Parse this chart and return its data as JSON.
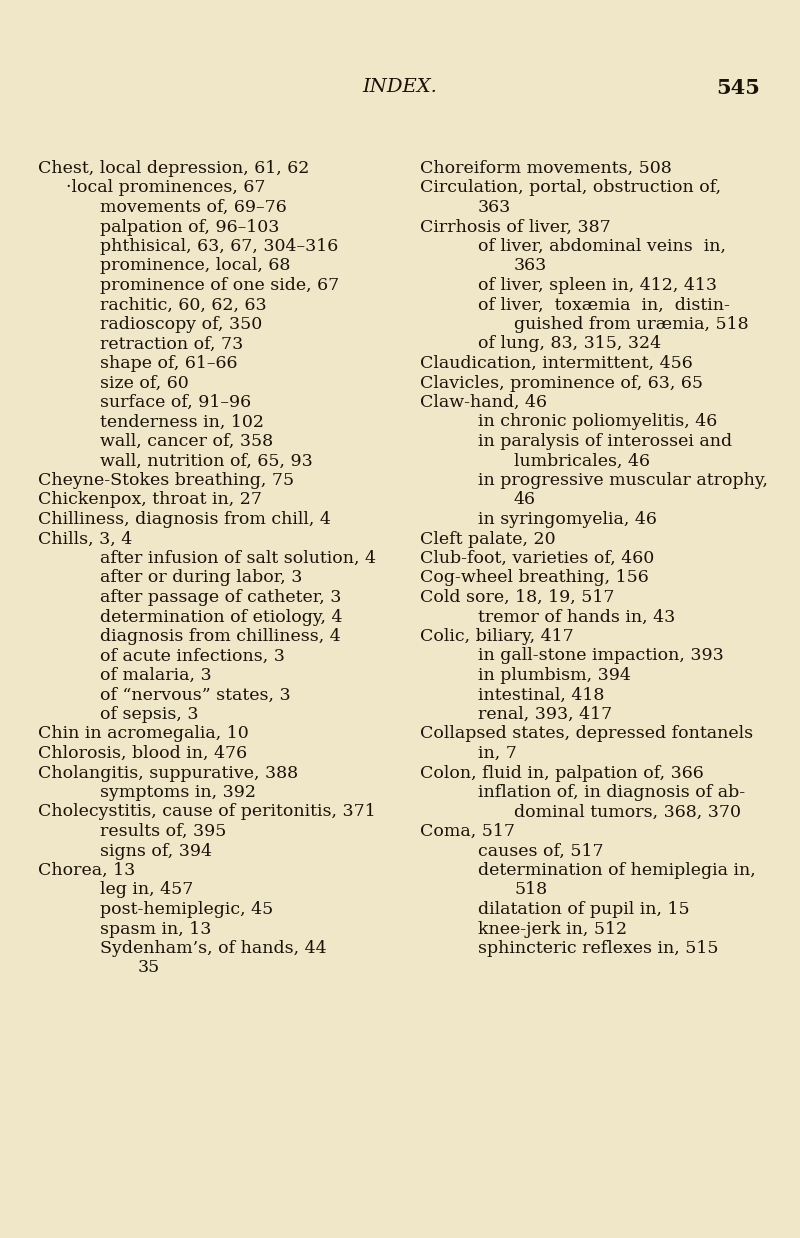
{
  "background_color": "#f0e6c8",
  "title": "INDEX.",
  "page_number": "545",
  "title_fontsize": 14,
  "body_fontsize": 12.5,
  "left_column": [
    {
      "text": "Chest, local depression, 61, 62",
      "indent": 0
    },
    {
      "text": "·local prominences, 67",
      "indent": 1
    },
    {
      "text": "movements of, 69–76",
      "indent": 1
    },
    {
      "text": "palpation of, 96–103",
      "indent": 1
    },
    {
      "text": "phthisical, 63, 67, 304–316",
      "indent": 1
    },
    {
      "text": "prominence, local, 68",
      "indent": 1
    },
    {
      "text": "prominence of one side, 67",
      "indent": 1
    },
    {
      "text": "rachitic, 60, 62, 63",
      "indent": 1
    },
    {
      "text": "radioscopy of, 350",
      "indent": 1
    },
    {
      "text": "retraction of, 73",
      "indent": 1
    },
    {
      "text": "shape of, 61–66",
      "indent": 1
    },
    {
      "text": "size of, 60",
      "indent": 1
    },
    {
      "text": "surface of, 91–96",
      "indent": 1
    },
    {
      "text": "tenderness in, 102",
      "indent": 1
    },
    {
      "text": "wall, cancer of, 358",
      "indent": 1
    },
    {
      "text": "wall, nutrition of, 65, 93",
      "indent": 1
    },
    {
      "text": "Cheyne-Stokes breathing, 75",
      "indent": 0
    },
    {
      "text": "Chickenpox, throat in, 27",
      "indent": 0
    },
    {
      "text": "Chilliness, diagnosis from chill, 4",
      "indent": 0
    },
    {
      "text": "Chills, 3, 4",
      "indent": 0
    },
    {
      "text": "after infusion of salt solution, 4",
      "indent": 1
    },
    {
      "text": "after or during labor, 3",
      "indent": 1
    },
    {
      "text": "after passage of catheter, 3",
      "indent": 1
    },
    {
      "text": "determination of etiology, 4",
      "indent": 1
    },
    {
      "text": "diagnosis from chilliness, 4",
      "indent": 1
    },
    {
      "text": "of acute infections, 3",
      "indent": 1
    },
    {
      "text": "of malaria, 3",
      "indent": 1
    },
    {
      "text": "of “nervous” states, 3",
      "indent": 1
    },
    {
      "text": "of sepsis, 3",
      "indent": 1
    },
    {
      "text": "Chin in acromegalia, 10",
      "indent": 0
    },
    {
      "text": "Chlorosis, blood in, 476",
      "indent": 0
    },
    {
      "text": "Cholangitis, suppurative, 388",
      "indent": 0
    },
    {
      "text": "symptoms in, 392",
      "indent": 1
    },
    {
      "text": "Cholecystitis, cause of peritonitis, 371",
      "indent": 0
    },
    {
      "text": "results of, 395",
      "indent": 1
    },
    {
      "text": "signs of, 394",
      "indent": 1
    },
    {
      "text": "Chorea, 13",
      "indent": 0
    },
    {
      "text": "leg in, 457",
      "indent": 1
    },
    {
      "text": "post-hemiplegic, 45",
      "indent": 1
    },
    {
      "text": "spasm in, 13",
      "indent": 1
    },
    {
      "text": "Sydenham’s, of hands, 44",
      "indent": 1
    },
    {
      "text": "35",
      "indent": 2
    }
  ],
  "right_column": [
    {
      "text": "Choreiform movements, 508",
      "indent": 0
    },
    {
      "text": "Circulation, portal, obstruction of,",
      "indent": 0
    },
    {
      "text": "363",
      "indent": 1
    },
    {
      "text": "Cirrhosis of liver, 387",
      "indent": 0
    },
    {
      "text": "of liver, abdominal veins  in,",
      "indent": 1
    },
    {
      "text": "363",
      "indent": 2
    },
    {
      "text": "of liver, spleen in, 412, 413",
      "indent": 1
    },
    {
      "text": "of liver,  toxæmia  in,  distin-",
      "indent": 1
    },
    {
      "text": "guished from uræmia, 518",
      "indent": 2
    },
    {
      "text": "of lung, 83, 315, 324",
      "indent": 1
    },
    {
      "text": "Claudication, intermittent, 456",
      "indent": 0
    },
    {
      "text": "Clavicles, prominence of, 63, 65",
      "indent": 0
    },
    {
      "text": "Claw-hand, 46",
      "indent": 0
    },
    {
      "text": "in chronic poliomyelitis, 46",
      "indent": 1
    },
    {
      "text": "in paralysis of interossei and",
      "indent": 1
    },
    {
      "text": "lumbricales, 46",
      "indent": 2
    },
    {
      "text": "in progressive muscular atrophy,",
      "indent": 1
    },
    {
      "text": "46",
      "indent": 2
    },
    {
      "text": "in syringomyelia, 46",
      "indent": 1
    },
    {
      "text": "Cleft palate, 20",
      "indent": 0
    },
    {
      "text": "Club-foot, varieties of, 460",
      "indent": 0
    },
    {
      "text": "Cog-wheel breathing, 156",
      "indent": 0
    },
    {
      "text": "Cold sore, 18, 19, 517",
      "indent": 0
    },
    {
      "text": "tremor of hands in, 43",
      "indent": 1
    },
    {
      "text": "Colic, biliary, 417",
      "indent": 0
    },
    {
      "text": "in gall-stone impaction, 393",
      "indent": 1
    },
    {
      "text": "in plumbism, 394",
      "indent": 1
    },
    {
      "text": "intestinal, 418",
      "indent": 1
    },
    {
      "text": "renal, 393, 417",
      "indent": 1
    },
    {
      "text": "Collapsed states, depressed fontanels",
      "indent": 0
    },
    {
      "text": "in, 7",
      "indent": 1
    },
    {
      "text": "Colon, fluid in, palpation of, 366",
      "indent": 0
    },
    {
      "text": "inflation of, in diagnosis of ab-",
      "indent": 1
    },
    {
      "text": "dominal tumors, 368, 370",
      "indent": 2
    },
    {
      "text": "Coma, 517",
      "indent": 0
    },
    {
      "text": "causes of, 517",
      "indent": 1
    },
    {
      "text": "determination of hemiplegia in,",
      "indent": 1
    },
    {
      "text": "518",
      "indent": 2
    },
    {
      "text": "dilatation of pupil in, 15",
      "indent": 1
    },
    {
      "text": "knee-jerk in, 512",
      "indent": 1
    },
    {
      "text": "sphincteric reflexes in, 515",
      "indent": 1
    }
  ]
}
